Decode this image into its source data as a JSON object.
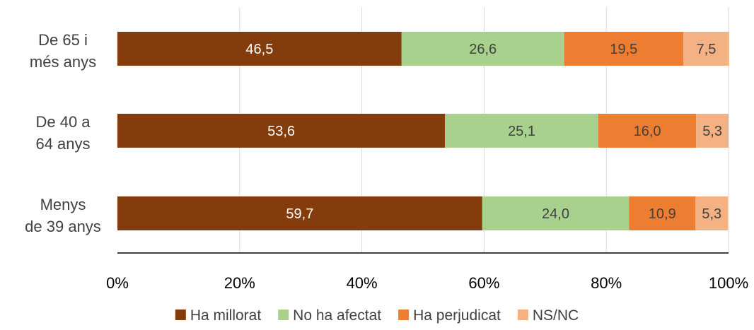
{
  "chart_data": {
    "type": "bar",
    "orientation": "horizontal",
    "stacked": true,
    "categories": [
      "De 65 i més anys",
      "De 40 a 64 anys",
      "Menys de 39 anys"
    ],
    "category_lines": [
      [
        "De 65 i",
        "més anys"
      ],
      [
        "De 40 a",
        "64 anys"
      ],
      [
        "Menys",
        "de 39 anys"
      ]
    ],
    "series": [
      {
        "name": "Ha millorat",
        "color": "#843C0C",
        "label_color": "#ffffff",
        "values": [
          46.5,
          53.6,
          59.7
        ],
        "labels": [
          "46,5",
          "53,6",
          "59,7"
        ]
      },
      {
        "name": "No ha afectat",
        "color": "#A9D18E",
        "label_color": "#404040",
        "values": [
          26.6,
          25.1,
          24.0
        ],
        "labels": [
          "26,6",
          "25,1",
          "24,0"
        ]
      },
      {
        "name": "Ha perjudicat",
        "color": "#ED7D31",
        "label_color": "#404040",
        "values": [
          19.5,
          16.0,
          10.9
        ],
        "labels": [
          "19,5",
          "16,0",
          "10,9"
        ]
      },
      {
        "name": "NS/NC",
        "color": "#F4B183",
        "label_color": "#404040",
        "values": [
          7.5,
          5.3,
          5.3
        ],
        "labels": [
          "7,5",
          "5,3",
          "5,3"
        ]
      }
    ],
    "xlim": [
      0,
      100
    ],
    "x_ticks": [
      0,
      20,
      40,
      60,
      80,
      100
    ],
    "x_tick_labels": [
      "0%",
      "20%",
      "40%",
      "60%",
      "80%",
      "100%"
    ],
    "grid": "vertical",
    "legend_position": "bottom",
    "title": "",
    "xlabel": "",
    "ylabel": ""
  }
}
